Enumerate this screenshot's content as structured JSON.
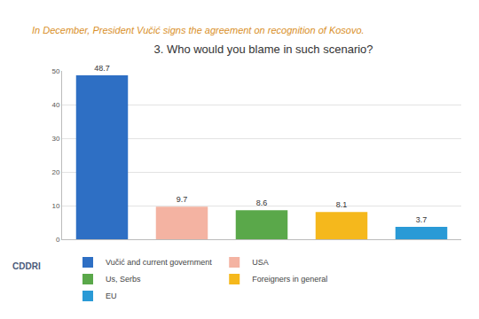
{
  "chart_data": {
    "type": "bar",
    "subtitle": "In December, President Vučić signs the agreement on recognition of Kosovo.",
    "title": "3. Who would you blame in such scenario?",
    "categories": [
      "Vučić and current government",
      "USA",
      "Us, Serbs",
      "Foreigners in general",
      "EU"
    ],
    "values": [
      48.7,
      9.7,
      8.6,
      8.1,
      3.7
    ],
    "colors": [
      "#2e6fc4",
      "#f4b3a2",
      "#5aa84a",
      "#f5b81c",
      "#2a9ad6"
    ],
    "ylim": [
      0,
      50
    ],
    "yticks": [
      0,
      10,
      20,
      30,
      40,
      50
    ],
    "grid": true,
    "legend": "bottom",
    "data_labels": true,
    "tick_labels": "y",
    "annotations": [
      "CDDRI"
    ]
  }
}
